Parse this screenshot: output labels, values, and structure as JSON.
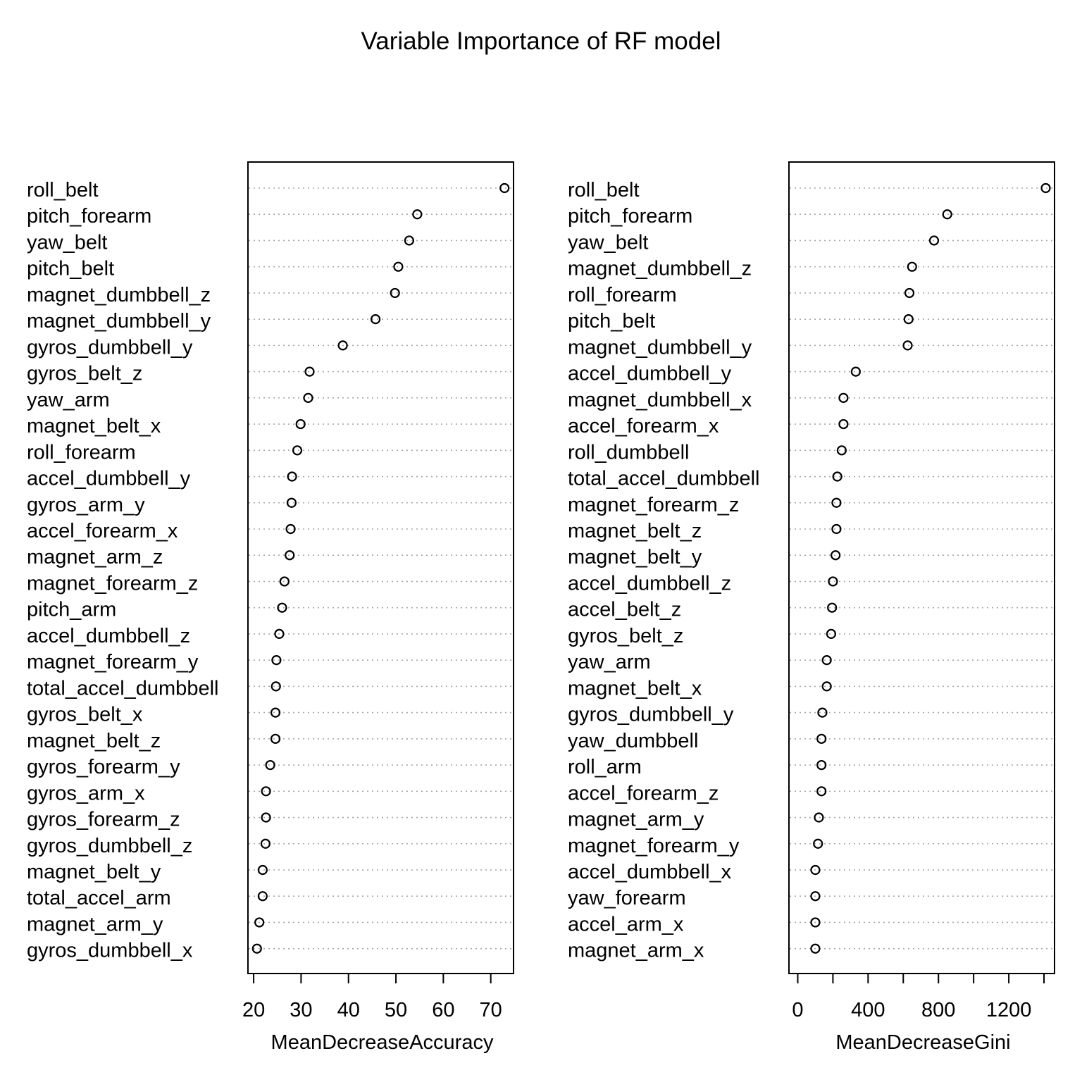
{
  "title": "Variable Importance of RF model",
  "chart_data": [
    {
      "type": "scatter",
      "style": "dotchart",
      "xlabel": "MeanDecreaseAccuracy",
      "xlim": [
        18.8,
        74.8
      ],
      "xticks": [
        20,
        30,
        40,
        50,
        60,
        70
      ],
      "xtick_labels": [
        "20",
        "30",
        "40",
        "50",
        "60",
        "70"
      ],
      "grid": "dotted horizontal guide lines",
      "categories": [
        "roll_belt",
        "pitch_forearm",
        "yaw_belt",
        "pitch_belt",
        "magnet_dumbbell_z",
        "magnet_dumbbell_y",
        "gyros_dumbbell_y",
        "gyros_belt_z",
        "yaw_arm",
        "magnet_belt_x",
        "roll_forearm",
        "accel_dumbbell_y",
        "gyros_arm_y",
        "accel_forearm_x",
        "magnet_arm_z",
        "magnet_forearm_z",
        "pitch_arm",
        "accel_dumbbell_z",
        "magnet_forearm_y",
        "total_accel_dumbbell",
        "gyros_belt_x",
        "magnet_belt_z",
        "gyros_forearm_y",
        "gyros_arm_x",
        "gyros_forearm_z",
        "gyros_dumbbell_z",
        "magnet_belt_y",
        "total_accel_arm",
        "magnet_arm_y",
        "gyros_dumbbell_x"
      ],
      "values": [
        72.9,
        54.5,
        52.8,
        50.5,
        49.8,
        45.7,
        38.8,
        31.8,
        31.5,
        29.9,
        29.2,
        28.1,
        28.0,
        27.8,
        27.6,
        26.5,
        26.0,
        25.4,
        24.8,
        24.7,
        24.6,
        24.6,
        23.5,
        22.6,
        22.6,
        22.5,
        21.9,
        21.9,
        21.2,
        20.7
      ]
    },
    {
      "type": "scatter",
      "style": "dotchart",
      "xlabel": "MeanDecreaseGini",
      "xlim": [
        -50,
        1460
      ],
      "xticks": [
        0,
        200,
        400,
        600,
        800,
        1000,
        1200,
        1400
      ],
      "xtick_labels": [
        "0",
        "",
        "400",
        "",
        "800",
        "",
        "1200",
        ""
      ],
      "grid": "dotted horizontal guide lines",
      "categories": [
        "roll_belt",
        "pitch_forearm",
        "yaw_belt",
        "magnet_dumbbell_z",
        "roll_forearm",
        "pitch_belt",
        "magnet_dumbbell_y",
        "accel_dumbbell_y",
        "magnet_dumbbell_x",
        "accel_forearm_x",
        "roll_dumbbell",
        "total_accel_dumbbell",
        "magnet_forearm_z",
        "magnet_belt_z",
        "magnet_belt_y",
        "accel_dumbbell_z",
        "accel_belt_z",
        "gyros_belt_z",
        "yaw_arm",
        "magnet_belt_x",
        "gyros_dumbbell_y",
        "yaw_dumbbell",
        "roll_arm",
        "accel_forearm_z",
        "magnet_arm_y",
        "magnet_forearm_y",
        "accel_dumbbell_x",
        "yaw_forearm",
        "accel_arm_x",
        "magnet_arm_x"
      ],
      "values": [
        1410,
        850,
        775,
        650,
        635,
        630,
        625,
        330,
        260,
        260,
        250,
        225,
        220,
        220,
        215,
        200,
        195,
        190,
        165,
        165,
        140,
        135,
        135,
        135,
        120,
        115,
        100,
        100,
        100,
        100
      ]
    }
  ]
}
